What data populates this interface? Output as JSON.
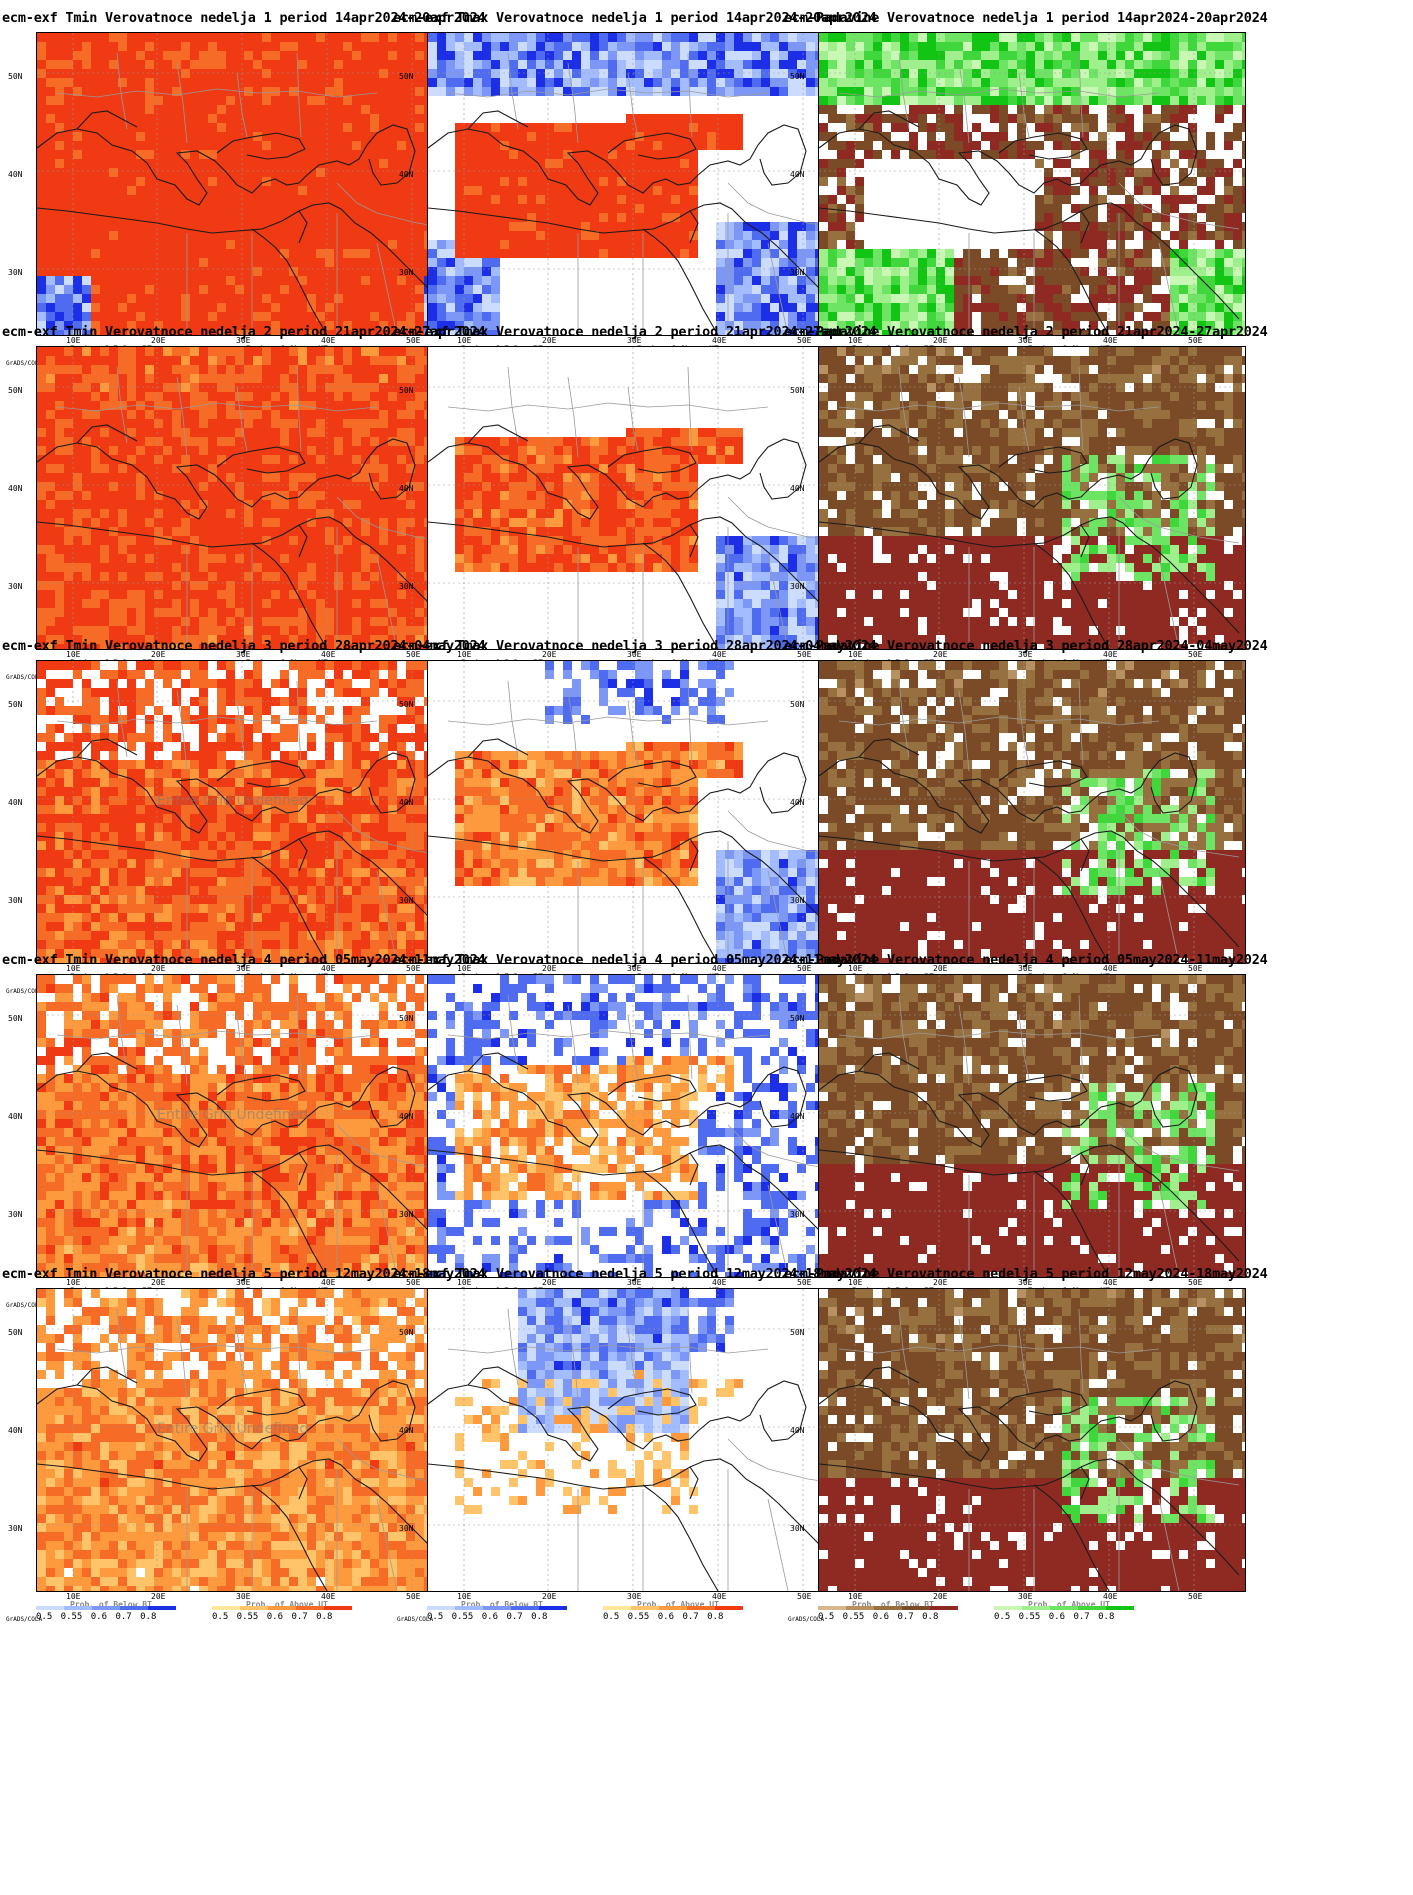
{
  "figure": {
    "lat_labels": [
      "50N",
      "40N",
      "30N"
    ],
    "lon_labels": [
      "10E",
      "20E",
      "30E",
      "40E",
      "50E"
    ],
    "grads_label": "GrADS/COLA",
    "legend_ticks": "0.5 0.55 0.6 0.7 0.8",
    "below_title": "Prob. of Below BT",
    "above_title": "Prob. of Above UT",
    "undefined_note": "Entire Grid Undefined"
  },
  "colors": {
    "temp_above": [
      "#ffe79a",
      "#ffc46a",
      "#fd9a3e",
      "#f66b25",
      "#ef3a13"
    ],
    "temp_below": [
      "#cbdcff",
      "#a3bcff",
      "#7c97f5",
      "#4f6bf0",
      "#1d2fe6"
    ],
    "precip_below": [
      "#d7b88a",
      "#b89162",
      "#96703f",
      "#7a4b26",
      "#8f2a23"
    ],
    "precip_above": [
      "#c9f7b4",
      "#9ff08c",
      "#6ee464",
      "#3fd73b",
      "#12c414"
    ]
  },
  "panels": [
    {
      "title": "ecm-exf Tmin Verovatnoce nedelja 1 period 14apr2024-20apr2024",
      "variable": "tmin",
      "week": 1
    },
    {
      "title": "ecm-exf Tmax Verovatnoce nedelja 1 period 14apr2024-20apr2024",
      "variable": "tmax",
      "week": 1
    },
    {
      "title": "ecm-Padavine Verovatnoce nedelja 1 period 14apr2024-20apr2024",
      "variable": "precip",
      "week": 1
    },
    {
      "title": "ecm-exf Tmin Verovatnoce nedelja 2 period 21apr2024-27apr2024",
      "variable": "tmin",
      "week": 2
    },
    {
      "title": "ecm-exf Tmax Verovatnoce nedelja 2 period 21apr2024-27apr2024",
      "variable": "tmax",
      "week": 2
    },
    {
      "title": "ecm-Padavine Verovatnoce nedelja 2 period 21apr2024-27apr2024",
      "variable": "precip",
      "week": 2
    },
    {
      "title": "ecm-exf Tmin Verovatnoce nedelja 3 period 28apr2024-04may2024",
      "variable": "tmin",
      "week": 3,
      "undefined": true
    },
    {
      "title": "ecm-exf Tmax Verovatnoce nedelja 3 period 28apr2024-04may2024",
      "variable": "tmax",
      "week": 3
    },
    {
      "title": "ecm-Padavine Verovatnoce nedelja 3 period 28apr2024-04may2024",
      "variable": "precip",
      "week": 3
    },
    {
      "title": "ecm-exf Tmin Verovatnoce nedelja 4 period 05may2024-11may2024",
      "variable": "tmin",
      "week": 4,
      "undefined": true
    },
    {
      "title": "ecm-exf Tmax Verovatnoce nedelja 4 period 05may2024-11may2024",
      "variable": "tmax",
      "week": 4
    },
    {
      "title": "ecm-Padavine Verovatnoce nedelja 4 period 05may2024-11may2024",
      "variable": "precip",
      "week": 4
    },
    {
      "title": "ecm-exf Tmin Verovatnoce nedelja 5 period 12may2024-18may2024",
      "variable": "tmin",
      "week": 5,
      "undefined": true
    },
    {
      "title": "ecm-exf Tmax Verovatnoce nedelja 5 period 12may2024-18may2024",
      "variable": "tmax",
      "week": 5
    },
    {
      "title": "ecm-Padavine Verovatnoce nedelja 5 period 12may2024-18may2024",
      "variable": "precip",
      "week": 5
    }
  ]
}
